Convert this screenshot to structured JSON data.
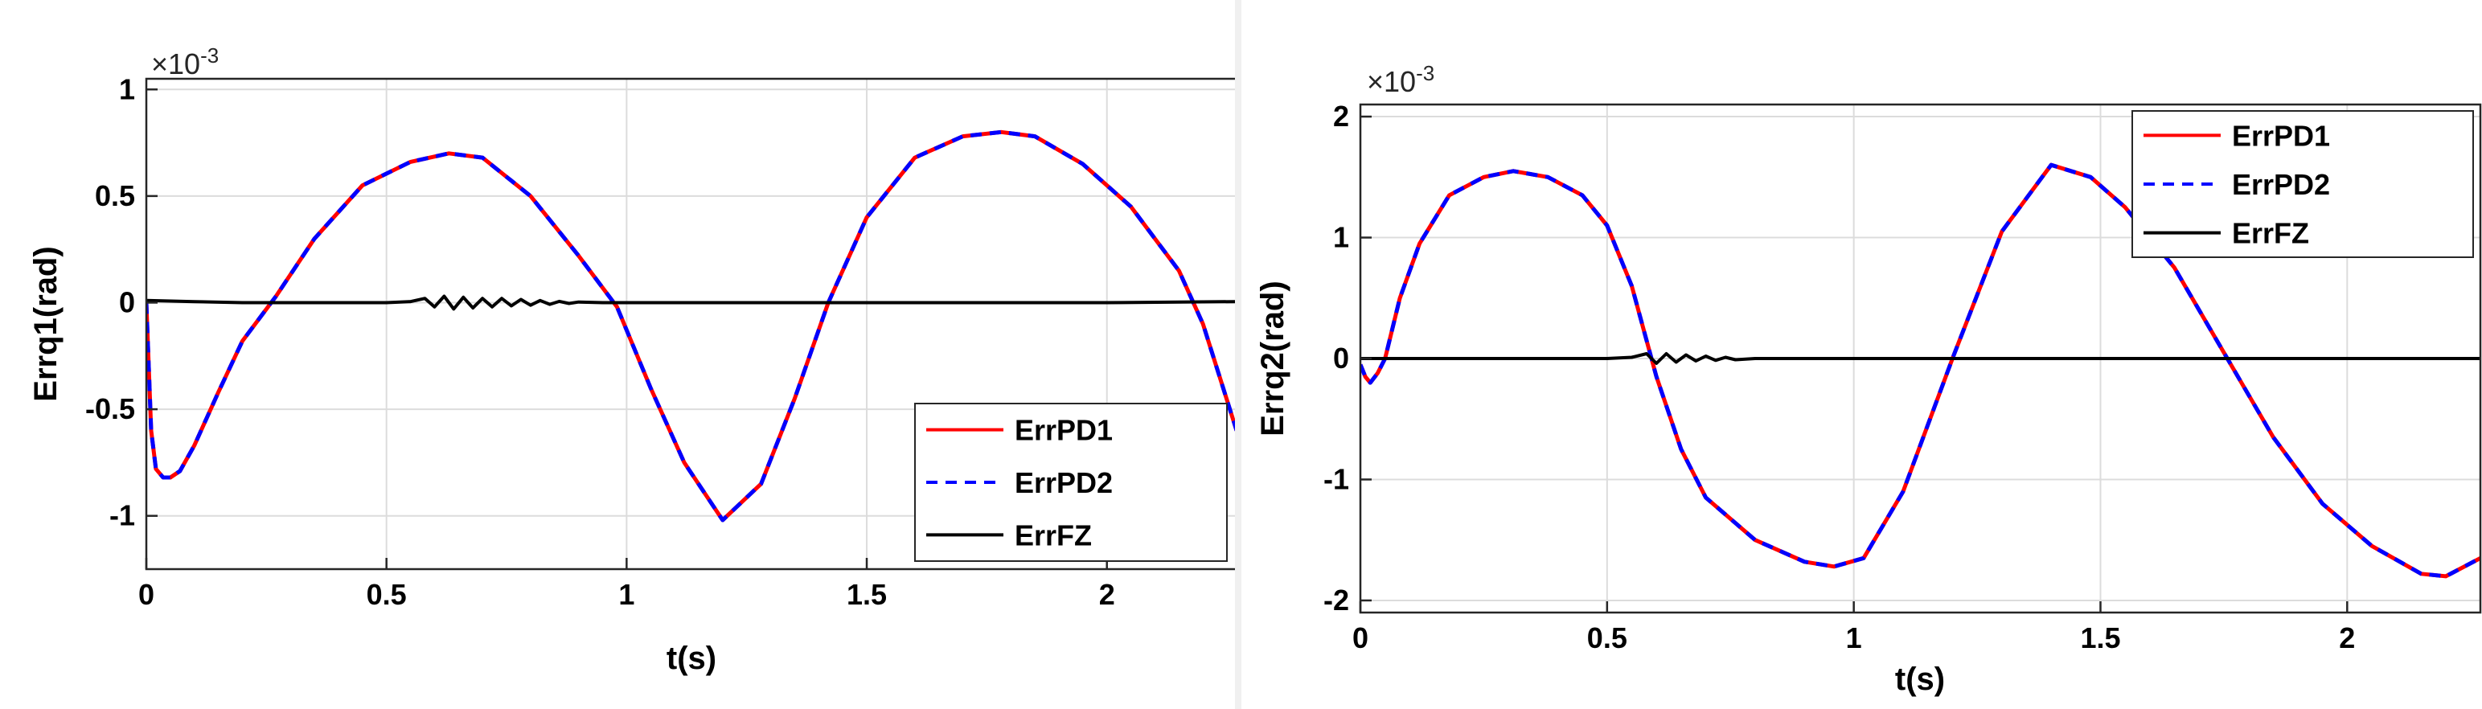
{
  "chart_data": [
    {
      "type": "line",
      "xlabel": "t(s)",
      "ylabel": "Errq1(rad)",
      "exponent_label": "×10",
      "exponent_power": "-3",
      "xlim": [
        0,
        2.27
      ],
      "ylim": [
        -1.25,
        1.05
      ],
      "xticks": [
        0,
        0.5,
        1,
        1.5,
        2
      ],
      "xtick_labels": [
        "0",
        "0.5",
        "1",
        "1.5",
        "2"
      ],
      "yticks": [
        -1,
        -0.5,
        0,
        0.5,
        1
      ],
      "ytick_labels": [
        "-1",
        "-0.5",
        "0",
        "0.5",
        "1"
      ],
      "grid": true,
      "legend_position": "bottom-right",
      "series": [
        {
          "name": "ErrPD1",
          "color": "#ff0000",
          "dash": "solid",
          "x": [
            0,
            0.005,
            0.01,
            0.02,
            0.035,
            0.05,
            0.07,
            0.1,
            0.15,
            0.2,
            0.27,
            0.35,
            0.45,
            0.55,
            0.63,
            0.7,
            0.8,
            0.9,
            0.98,
            1.05,
            1.12,
            1.2,
            1.28,
            1.35,
            1.42,
            1.5,
            1.6,
            1.7,
            1.78,
            1.85,
            1.95,
            2.05,
            2.15,
            2.2,
            2.27
          ],
          "values": [
            0,
            -0.3,
            -0.6,
            -0.78,
            -0.82,
            -0.82,
            -0.79,
            -0.67,
            -0.42,
            -0.18,
            0.03,
            0.3,
            0.55,
            0.66,
            0.7,
            0.68,
            0.5,
            0.22,
            -0.02,
            -0.4,
            -0.75,
            -1.02,
            -0.85,
            -0.45,
            0.0,
            0.4,
            0.68,
            0.78,
            0.8,
            0.78,
            0.65,
            0.45,
            0.15,
            -0.1,
            -0.6
          ]
        },
        {
          "name": "ErrPD2",
          "color": "#0000ff",
          "dash": "dashed",
          "x": [
            0,
            0.005,
            0.01,
            0.02,
            0.035,
            0.05,
            0.07,
            0.1,
            0.15,
            0.2,
            0.27,
            0.35,
            0.45,
            0.55,
            0.63,
            0.7,
            0.8,
            0.9,
            0.98,
            1.05,
            1.12,
            1.2,
            1.28,
            1.35,
            1.42,
            1.5,
            1.6,
            1.7,
            1.78,
            1.85,
            1.95,
            2.05,
            2.15,
            2.2,
            2.27
          ],
          "values": [
            0,
            -0.3,
            -0.6,
            -0.78,
            -0.82,
            -0.82,
            -0.79,
            -0.67,
            -0.42,
            -0.18,
            0.03,
            0.3,
            0.55,
            0.66,
            0.7,
            0.68,
            0.5,
            0.22,
            -0.02,
            -0.4,
            -0.75,
            -1.02,
            -0.85,
            -0.45,
            0.0,
            0.4,
            0.68,
            0.78,
            0.8,
            0.78,
            0.65,
            0.45,
            0.15,
            -0.1,
            -0.6
          ]
        },
        {
          "name": "ErrFZ",
          "color": "#000000",
          "dash": "solid",
          "x": [
            0,
            0.1,
            0.2,
            0.3,
            0.4,
            0.5,
            0.55,
            0.58,
            0.6,
            0.62,
            0.64,
            0.66,
            0.68,
            0.7,
            0.72,
            0.74,
            0.76,
            0.78,
            0.8,
            0.82,
            0.84,
            0.86,
            0.88,
            0.9,
            0.95,
            1.0,
            1.2,
            1.4,
            1.6,
            1.8,
            2.0,
            2.27
          ],
          "values": [
            0.01,
            0.005,
            0.0,
            0.0,
            0.0,
            0.0,
            0.005,
            0.02,
            -0.02,
            0.03,
            -0.03,
            0.025,
            -0.025,
            0.02,
            -0.02,
            0.02,
            -0.015,
            0.015,
            -0.012,
            0.01,
            -0.008,
            0.006,
            -0.004,
            0.003,
            0.0,
            0.0,
            0.0,
            0.0,
            0.0,
            0.0,
            0.0,
            0.005
          ]
        }
      ]
    },
    {
      "type": "line",
      "xlabel": "t(s)",
      "ylabel": "Errq2(rad)",
      "exponent_label": "×10",
      "exponent_power": "-3",
      "xlim": [
        0,
        2.27
      ],
      "ylim": [
        -2.1,
        2.1
      ],
      "xticks": [
        0,
        0.5,
        1,
        1.5,
        2
      ],
      "xtick_labels": [
        "0",
        "0.5",
        "1",
        "1.5",
        "2"
      ],
      "yticks": [
        -2,
        -1,
        0,
        1,
        2
      ],
      "ytick_labels": [
        "-2",
        "-1",
        "0",
        "1",
        "2"
      ],
      "grid": true,
      "legend_position": "top-right",
      "series": [
        {
          "name": "ErrPD1",
          "color": "#ff0000",
          "dash": "solid",
          "x": [
            0,
            0.01,
            0.02,
            0.035,
            0.05,
            0.08,
            0.12,
            0.18,
            0.25,
            0.31,
            0.38,
            0.45,
            0.5,
            0.55,
            0.6,
            0.65,
            0.7,
            0.8,
            0.9,
            0.96,
            1.02,
            1.1,
            1.2,
            1.3,
            1.4,
            1.48,
            1.55,
            1.65,
            1.75,
            1.85,
            1.95,
            2.05,
            2.15,
            2.2,
            2.27
          ],
          "values": [
            -0.05,
            -0.15,
            -0.2,
            -0.12,
            0.0,
            0.5,
            0.95,
            1.35,
            1.5,
            1.55,
            1.5,
            1.35,
            1.1,
            0.6,
            -0.15,
            -0.75,
            -1.15,
            -1.5,
            -1.68,
            -1.72,
            -1.65,
            -1.1,
            0.0,
            1.05,
            1.6,
            1.5,
            1.25,
            0.75,
            0.05,
            -0.65,
            -1.2,
            -1.55,
            -1.78,
            -1.8,
            -1.65
          ]
        },
        {
          "name": "ErrPD2",
          "color": "#0000ff",
          "dash": "dashed",
          "x": [
            0,
            0.01,
            0.02,
            0.035,
            0.05,
            0.08,
            0.12,
            0.18,
            0.25,
            0.31,
            0.38,
            0.45,
            0.5,
            0.55,
            0.6,
            0.65,
            0.7,
            0.8,
            0.9,
            0.96,
            1.02,
            1.1,
            1.2,
            1.3,
            1.4,
            1.48,
            1.55,
            1.65,
            1.75,
            1.85,
            1.95,
            2.05,
            2.15,
            2.2,
            2.27
          ],
          "values": [
            -0.05,
            -0.15,
            -0.2,
            -0.12,
            0.0,
            0.5,
            0.95,
            1.35,
            1.5,
            1.55,
            1.5,
            1.35,
            1.1,
            0.6,
            -0.15,
            -0.75,
            -1.15,
            -1.5,
            -1.68,
            -1.72,
            -1.65,
            -1.1,
            0.0,
            1.05,
            1.6,
            1.5,
            1.25,
            0.75,
            0.05,
            -0.65,
            -1.2,
            -1.55,
            -1.78,
            -1.8,
            -1.65
          ]
        },
        {
          "name": "ErrFZ",
          "color": "#000000",
          "dash": "solid",
          "x": [
            0,
            0.1,
            0.2,
            0.3,
            0.4,
            0.5,
            0.55,
            0.58,
            0.6,
            0.62,
            0.64,
            0.66,
            0.68,
            0.7,
            0.72,
            0.74,
            0.76,
            0.8,
            0.9,
            1.0,
            1.2,
            1.4,
            1.6,
            1.8,
            2.0,
            2.27
          ],
          "values": [
            0.0,
            0.0,
            0.0,
            0.0,
            0.0,
            0.0,
            0.01,
            0.04,
            -0.04,
            0.04,
            -0.03,
            0.03,
            -0.02,
            0.02,
            -0.015,
            0.01,
            -0.01,
            0.0,
            0.0,
            0.0,
            0.0,
            0.0,
            0.0,
            0.0,
            0.0,
            0.0
          ]
        }
      ]
    }
  ]
}
